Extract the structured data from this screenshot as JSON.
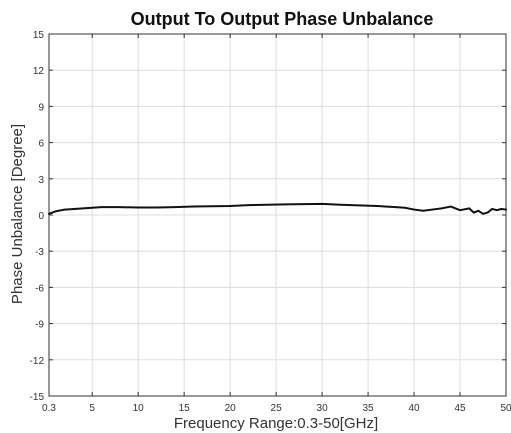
{
  "chart_data": {
    "type": "line",
    "title": "Output To Output Phase Unbalance",
    "xlabel": "Frequency Range:0.3-50[GHz]",
    "ylabel": "Phase Unbalance [Degree]",
    "xlim": [
      0.3,
      50
    ],
    "ylim": [
      -15,
      15
    ],
    "x_ticks": [
      0.3,
      5,
      10,
      15,
      20,
      25,
      30,
      35,
      40,
      45,
      50
    ],
    "x_tick_labels": [
      "0.3",
      "5",
      "10",
      "15",
      "20",
      "25",
      "30",
      "35",
      "40",
      "45",
      "50"
    ],
    "y_ticks": [
      -15,
      -12,
      -9,
      -6,
      -3,
      0,
      3,
      6,
      9,
      12,
      15
    ],
    "y_tick_labels": [
      "-15",
      "-12",
      "-9",
      "-6",
      "-3",
      "0",
      "3",
      "6",
      "9",
      "12",
      "15"
    ],
    "grid": true,
    "series": [
      {
        "color": "#111111",
        "x": [
          0.3,
          1,
          2,
          3,
          4,
          5,
          6,
          8,
          10,
          12,
          14,
          16,
          18,
          20,
          22,
          24,
          26,
          28,
          30,
          32,
          34,
          36,
          38,
          39,
          40,
          41,
          42,
          43,
          44,
          45,
          46,
          46.5,
          47,
          47.5,
          48,
          48.5,
          49,
          49.5,
          50
        ],
        "y": [
          0.1,
          0.3,
          0.45,
          0.5,
          0.55,
          0.6,
          0.65,
          0.65,
          0.62,
          0.62,
          0.65,
          0.7,
          0.72,
          0.75,
          0.82,
          0.85,
          0.88,
          0.9,
          0.92,
          0.85,
          0.8,
          0.75,
          0.65,
          0.6,
          0.45,
          0.35,
          0.45,
          0.55,
          0.7,
          0.4,
          0.55,
          0.2,
          0.35,
          0.1,
          0.2,
          0.5,
          0.4,
          0.5,
          0.45
        ]
      }
    ]
  }
}
